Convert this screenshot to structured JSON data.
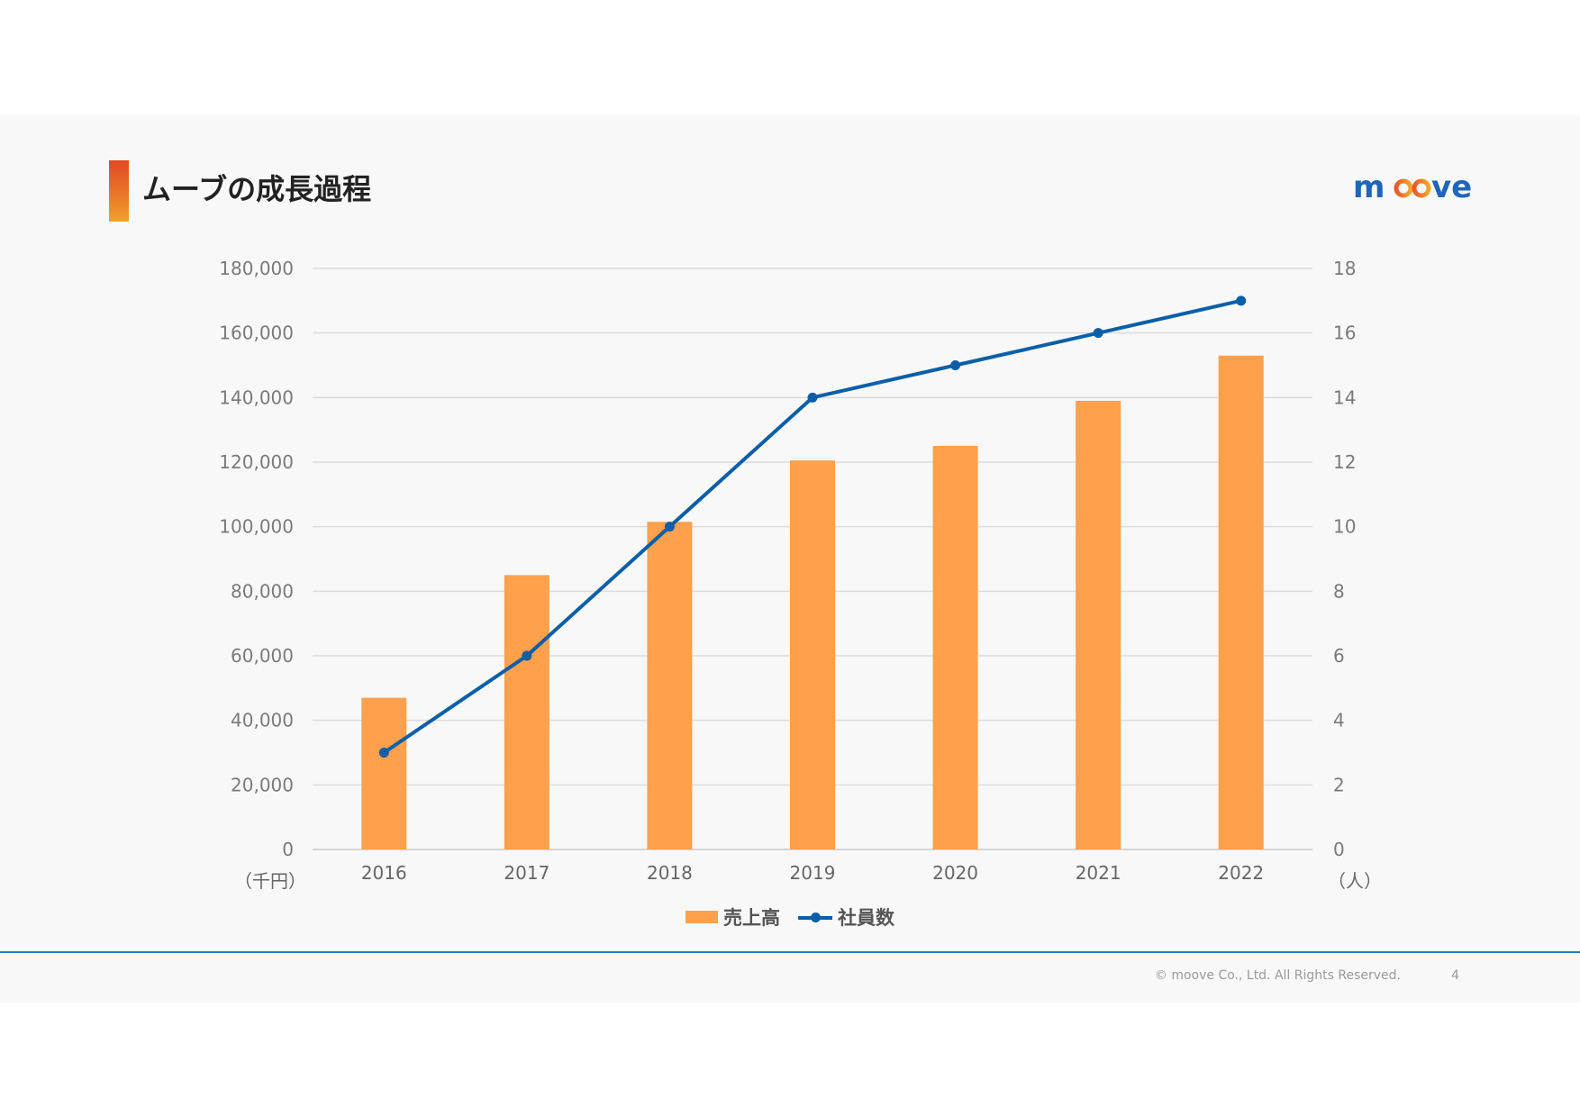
{
  "slide": {
    "title": "ムーブの成長過程",
    "logo_text": "moove",
    "footer_copyright": "© moove Co., Ltd. All Rights Reserved.",
    "page_number": "4"
  },
  "colors": {
    "bar": "#ffa04c",
    "line": "#0a5fa8",
    "accent_top": "#e04a22",
    "accent_bottom": "#f2a12a",
    "logo_blue": "#1f66b8"
  },
  "chart_data": {
    "type": "bar",
    "title": "",
    "categories": [
      "2016",
      "2017",
      "2018",
      "2019",
      "2020",
      "2021",
      "2022"
    ],
    "series": [
      {
        "name": "売上高",
        "type": "bar",
        "axis": "left",
        "values": [
          47000,
          85000,
          101500,
          120500,
          125000,
          139000,
          153000
        ]
      },
      {
        "name": "社員数",
        "type": "line",
        "axis": "right",
        "values": [
          3,
          6,
          10,
          14,
          15,
          16,
          17
        ]
      }
    ],
    "y_left": {
      "unit_label": "（千円）",
      "range": [
        0,
        180000
      ],
      "ticks": [
        "0",
        "20,000",
        "40,000",
        "60,000",
        "80,000",
        "100,000",
        "120,000",
        "140,000",
        "160,000",
        "180,000"
      ]
    },
    "y_right": {
      "unit_label": "（人）",
      "range": [
        0,
        18
      ],
      "ticks": [
        "0",
        "2",
        "4",
        "6",
        "8",
        "10",
        "12",
        "14",
        "16",
        "18"
      ]
    },
    "grid": true,
    "legend_position": "bottom"
  }
}
